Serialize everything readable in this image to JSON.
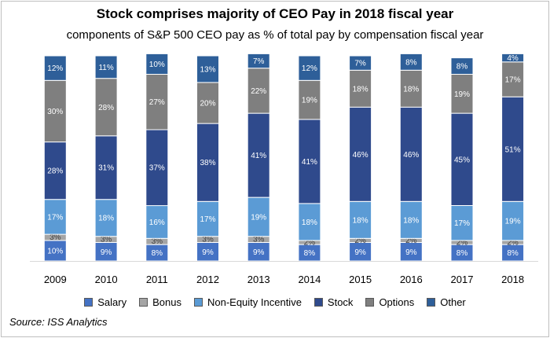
{
  "title": "Stock comprises majority of CEO Pay in 2018 fiscal year",
  "subtitle": "components of S&P 500 CEO pay as % of total pay by compensation fiscal year",
  "source": "Source: ISS Analytics",
  "colors": {
    "Salary": "#4472c4",
    "Bonus": "#a5a5a5",
    "Non-Equity Incentive": "#5b9bd5",
    "Stock": "#2f4a8c",
    "Options": "#7f7f7f",
    "Other": "#2e5f99"
  },
  "chart_data": {
    "type": "bar",
    "stacked": true,
    "categories": [
      "2009",
      "2010",
      "2011",
      "2012",
      "2013",
      "2014",
      "2015",
      "2016",
      "2017",
      "2018"
    ],
    "ylim": [
      0,
      100
    ],
    "legend_position": "bottom",
    "series": [
      {
        "name": "Salary",
        "values": [
          10,
          9,
          8,
          9,
          9,
          8,
          9,
          9,
          8,
          8
        ],
        "labels": [
          "10%",
          "9%",
          "8%",
          "9%",
          "9%",
          "8%",
          "9%",
          "9%",
          "8%",
          "8%"
        ]
      },
      {
        "name": "Bonus",
        "values": [
          3,
          3,
          3,
          3,
          3,
          2,
          2,
          2,
          2,
          2
        ],
        "labels": [
          "3%",
          "3%",
          "3%",
          "3%",
          "3%",
          "2%",
          "2%",
          "2%",
          "2%",
          "2%"
        ]
      },
      {
        "name": "Non-Equity Incentive",
        "values": [
          17,
          18,
          16,
          17,
          19,
          18,
          18,
          18,
          17,
          19
        ],
        "labels": [
          "17%",
          "18%",
          "16%",
          "17%",
          "19%",
          "18%",
          "18%",
          "18%",
          "17%",
          "19%"
        ]
      },
      {
        "name": "Stock",
        "values": [
          28,
          31,
          37,
          38,
          41,
          41,
          46,
          46,
          45,
          51
        ],
        "labels": [
          "28%",
          "31%",
          "37%",
          "38%",
          "41%",
          "41%",
          "46%",
          "46%",
          "45%",
          "51%"
        ]
      },
      {
        "name": "Options",
        "values": [
          30,
          28,
          27,
          20,
          22,
          19,
          18,
          18,
          19,
          17
        ],
        "labels": [
          "30%",
          "28%",
          "27%",
          "20%",
          "22%",
          "19%",
          "18%",
          "18%",
          "19%",
          "17%"
        ]
      },
      {
        "name": "Other",
        "values": [
          12,
          11,
          10,
          13,
          7,
          12,
          7,
          8,
          8,
          4
        ],
        "labels": [
          "12%",
          "11%",
          "10%",
          "13%",
          "7%",
          "12%",
          "7%",
          "8%",
          "8%",
          "4%"
        ]
      }
    ]
  }
}
